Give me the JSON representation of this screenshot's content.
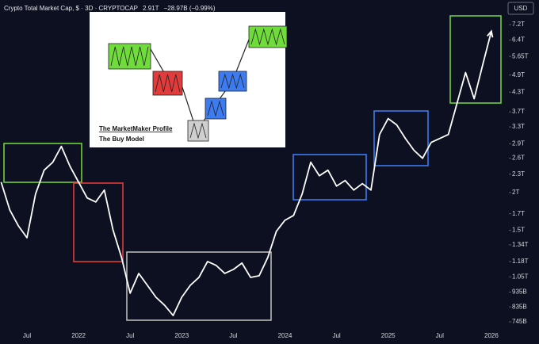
{
  "chart_data": {
    "type": "line",
    "title": "Crypto Total Market Cap, $ · 3D · CRYPTOCAP",
    "annotations": [
      "2.91T",
      "−28.97B (−0.99%)"
    ],
    "currency": "USD",
    "inset": {
      "title": "The MarketMaker Profile",
      "subtitle": "The Buy Model"
    },
    "categories": [
      null,
      null,
      null,
      "Jul",
      null,
      null,
      null,
      null,
      null,
      "2022",
      null,
      null,
      null,
      null,
      null,
      "Jul",
      null,
      null,
      null,
      null,
      null,
      "2023",
      null,
      null,
      null,
      null,
      null,
      "Jul",
      null,
      null,
      null,
      null,
      null,
      "2024",
      null,
      null,
      null,
      null,
      null,
      "Jul",
      null,
      null,
      null,
      null,
      null,
      "2025",
      null,
      null,
      null,
      null,
      null,
      "Jul",
      null,
      null,
      null,
      null,
      null,
      "2026"
    ],
    "series": [
      {
        "color": "#ffffff",
        "values": [
          2165,
          1751,
          1551,
          1416,
          1977,
          2371,
          2519,
          2844,
          2444,
          2165,
          1918,
          1860,
          2037,
          1505,
          1217,
          927,
          1078,
          985,
          899,
          846,
          782,
          899,
          985,
          1046,
          1181,
          1146,
          1078,
          1111,
          1167,
          1046,
          1059,
          1217,
          1487,
          1618,
          1678,
          1977,
          2519,
          2272,
          2371,
          2100,
          2191,
          2037,
          2139,
          2037,
          3114,
          3516,
          3349,
          3021,
          2759,
          2596,
          2931,
          null,
          null,
          null,
          null,
          null,
          null,
          null
        ]
      },
      {
        "color": "#ffffff",
        "values": [
          null,
          null,
          null,
          null,
          null,
          null,
          null,
          null,
          null,
          null,
          null,
          null,
          null,
          null,
          null,
          null,
          null,
          null,
          null,
          null,
          null,
          null,
          null,
          null,
          null,
          null,
          null,
          null,
          null,
          null,
          null,
          null,
          null,
          null,
          null,
          null,
          null,
          null,
          null,
          null,
          null,
          null,
          null,
          null,
          null,
          null,
          null,
          null,
          null,
          null,
          2931,
          3021,
          3114,
          3944,
          4996,
          4090,
          5308,
          6847
        ]
      }
    ],
    "log_scale": true,
    "grid": false,
    "ylim": [
      710,
      8690
    ],
    "yticks": [
      {
        "value": 745,
        "label": "745B"
      },
      {
        "value": 835,
        "label": "835B"
      },
      {
        "value": 935,
        "label": "935B"
      },
      {
        "value": 1050,
        "label": "1.05T"
      },
      {
        "value": 1180,
        "label": "1.18T"
      },
      {
        "value": 1340,
        "label": "1.34T"
      },
      {
        "value": 1500,
        "label": "1.5T"
      },
      {
        "value": 1700,
        "label": "1.7T"
      },
      {
        "value": 2000,
        "label": "2T"
      },
      {
        "value": 2300,
        "label": "2.3T"
      },
      {
        "value": 2600,
        "label": "2.6T"
      },
      {
        "value": 2900,
        "label": "2.9T"
      },
      {
        "value": 3300,
        "label": "3.3T"
      },
      {
        "value": 3700,
        "label": "3.7T"
      },
      {
        "value": 4300,
        "label": "4.3T"
      },
      {
        "value": 4900,
        "label": "4.9T"
      },
      {
        "value": 5650,
        "label": "5.65T"
      },
      {
        "value": 6400,
        "label": "6.4T"
      },
      {
        "value": 7200,
        "label": "7.2T"
      }
    ]
  }
}
